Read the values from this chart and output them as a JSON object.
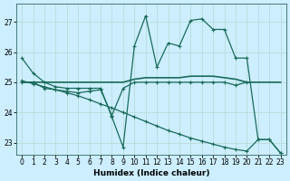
{
  "xlabel": "Humidex (Indice chaleur)",
  "background_color": "#cceeff",
  "grid_color": "#b8ddd8",
  "line_color": "#1a6b5a",
  "xlim": [
    -0.5,
    23.5
  ],
  "ylim": [
    22.6,
    27.6
  ],
  "yticks": [
    23,
    24,
    25,
    26,
    27
  ],
  "xticks": [
    0,
    1,
    2,
    3,
    4,
    5,
    6,
    7,
    8,
    9,
    10,
    11,
    12,
    13,
    14,
    15,
    16,
    17,
    18,
    19,
    20,
    21,
    22,
    23
  ],
  "series": {
    "line_flat": {
      "x": [
        0,
        1,
        2,
        3,
        4,
        5,
        6,
        7,
        8,
        9,
        10,
        11,
        12,
        13,
        14,
        15,
        16,
        17,
        18,
        19,
        20,
        21,
        22,
        23
      ],
      "y": [
        25.0,
        25.0,
        25.0,
        25.0,
        25.0,
        25.0,
        25.0,
        25.0,
        25.0,
        25.0,
        25.1,
        25.15,
        25.15,
        25.15,
        25.15,
        25.2,
        25.2,
        25.2,
        25.15,
        25.1,
        25.0,
        25.0,
        25.0,
        25.0
      ]
    },
    "line_descend": {
      "x": [
        0,
        1,
        2,
        3,
        4,
        5,
        6,
        7,
        8,
        9,
        10,
        11,
        12,
        13,
        14,
        15,
        16,
        17,
        18,
        19,
        20,
        21,
        22,
        23
      ],
      "y": [
        25.05,
        24.95,
        24.85,
        24.75,
        24.65,
        24.55,
        24.42,
        24.28,
        24.15,
        24.0,
        23.85,
        23.7,
        23.55,
        23.4,
        23.28,
        23.15,
        23.05,
        22.95,
        22.85,
        22.77,
        22.72,
        23.1,
        23.1,
        22.65
      ]
    },
    "line_dip": {
      "x": [
        0,
        1,
        2,
        3,
        4,
        5,
        6,
        7,
        8,
        9,
        10,
        11,
        12,
        13,
        14,
        15,
        16,
        17,
        18,
        19,
        20
      ],
      "y": [
        25.0,
        25.0,
        24.8,
        24.75,
        24.7,
        24.65,
        24.7,
        24.75,
        23.9,
        24.8,
        25.0,
        25.0,
        25.0,
        25.0,
        25.0,
        25.0,
        25.0,
        25.0,
        25.0,
        24.9,
        25.0
      ]
    },
    "line_spiky": {
      "x": [
        0,
        1,
        2,
        3,
        4,
        5,
        6,
        7,
        8,
        9,
        10,
        11,
        12,
        13,
        14,
        15,
        16,
        17,
        18,
        19,
        20,
        21,
        22,
        23
      ],
      "y": [
        25.8,
        25.3,
        25.0,
        24.85,
        24.8,
        24.8,
        24.8,
        24.8,
        23.85,
        22.85,
        26.2,
        27.2,
        25.5,
        26.3,
        26.2,
        27.05,
        27.1,
        26.75,
        26.75,
        25.8,
        25.8,
        23.1,
        23.1,
        22.65
      ]
    }
  }
}
